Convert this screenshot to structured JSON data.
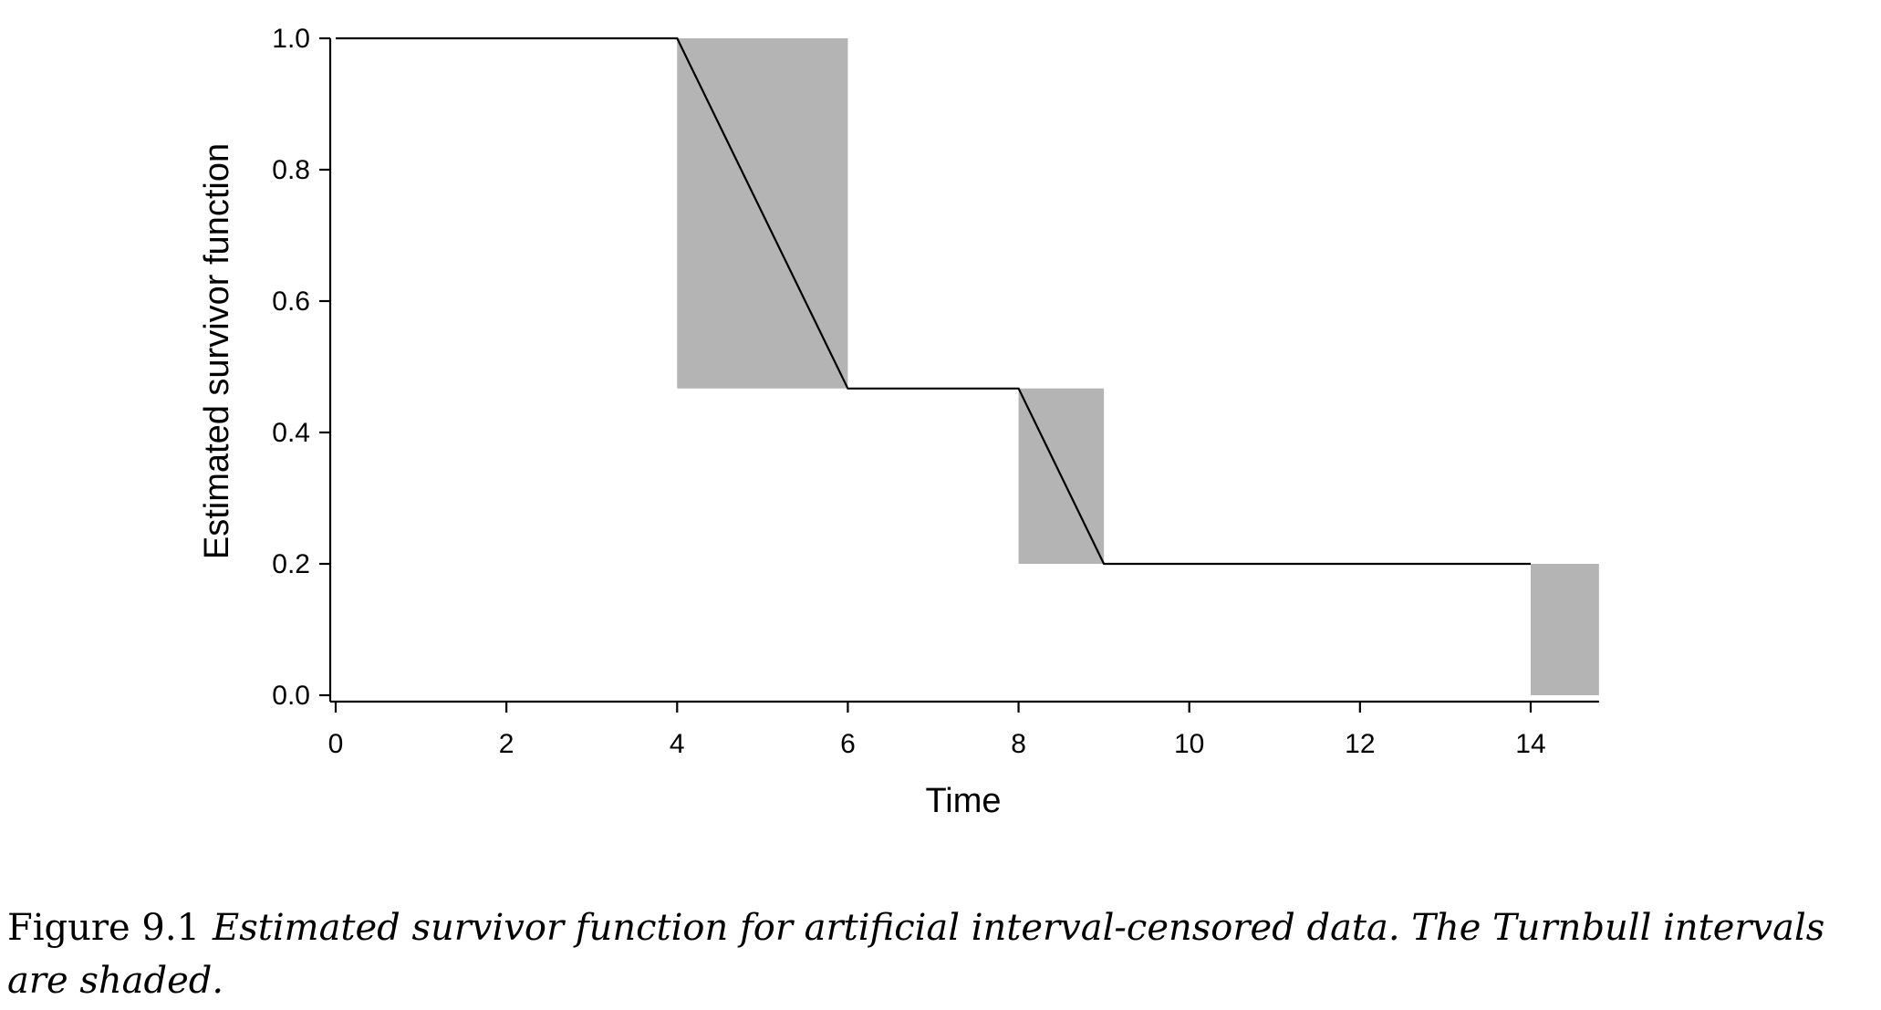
{
  "chart_data": {
    "type": "line",
    "xlabel": "Time",
    "ylabel": "Estimated survivor function",
    "xlim": [
      0,
      14.8
    ],
    "ylim": [
      0,
      1.0
    ],
    "x_ticks": [
      0,
      2,
      4,
      6,
      8,
      10,
      12,
      14
    ],
    "y_ticks": [
      0.0,
      0.2,
      0.4,
      0.6,
      0.8,
      1.0
    ],
    "x_tick_labels": [
      "0",
      "2",
      "4",
      "6",
      "8",
      "10",
      "12",
      "14"
    ],
    "y_tick_labels": [
      "0.0",
      "0.2",
      "0.4",
      "0.6",
      "0.8",
      "1.0"
    ],
    "grid": false,
    "series": [
      {
        "x": [
          0,
          4,
          6,
          8,
          9,
          14
        ],
        "y": [
          1.0,
          1.0,
          0.467,
          0.467,
          0.2,
          0.2
        ],
        "color": "#000000"
      }
    ],
    "shaded_intervals": [
      {
        "x": [
          4,
          6
        ],
        "y": [
          0.467,
          1.0
        ]
      },
      {
        "x": [
          8,
          9
        ],
        "y": [
          0.2,
          0.467
        ]
      },
      {
        "x": [
          14,
          14.8
        ],
        "y": [
          0.0,
          0.2
        ]
      }
    ],
    "shade_color": "#b4b4b4"
  },
  "caption": {
    "label": "Figure 9.1",
    "text": "Estimated survivor function for artificial interval-censored data. The Turnbull intervals are shaded."
  }
}
